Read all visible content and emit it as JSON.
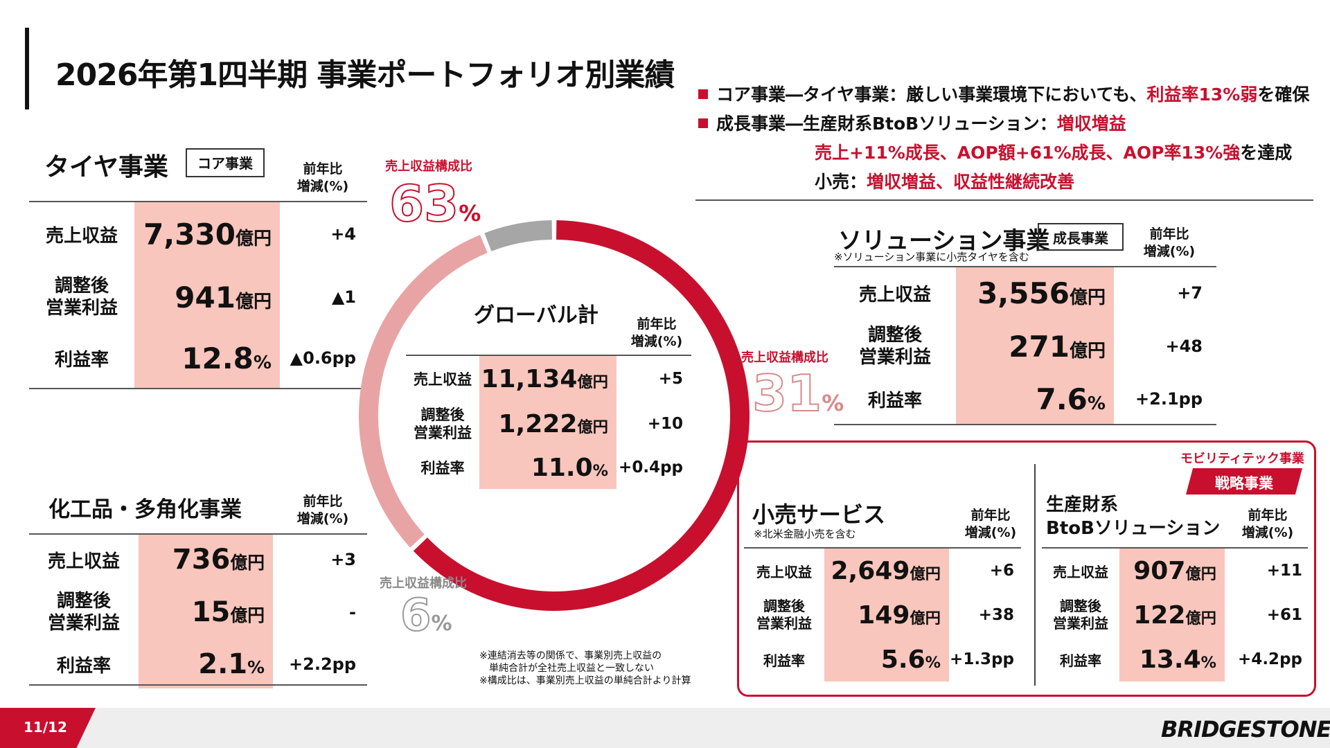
{
  "title": "2026年第1四半期 事業ポートフォリオ別業績",
  "bullets": {
    "b1_a": "コア事業―タイヤ事業：厳しい事業環境下においても、",
    "b1_b": "利益率13%弱",
    "b1_c": "を確保",
    "b2_a": "成長事業―生産財系BtoBソリューション：",
    "b2_b": "増収増益",
    "b3_a": "売上+11%成長、AOP額+61%成長、AOP率13%強",
    "b3_b": "を達成",
    "b4_a": "小売：",
    "b4_b": "増収増益、収益性継続改善"
  },
  "headers": {
    "yoy": "前年比\n増減(%)"
  },
  "labels": {
    "sales": "売上収益",
    "aop": "調整後\n営業利益",
    "margin": "利益率"
  },
  "tire": {
    "title": "タイヤ事業",
    "badge": "コア事業",
    "sales": "7,330",
    "sales_unit": "億円",
    "sales_yoy": "+4",
    "aop": "941",
    "aop_unit": "億円",
    "aop_yoy": "▲1",
    "margin": "12.8",
    "margin_unit": "%",
    "margin_yoy": "▲0.6pp"
  },
  "chem": {
    "title": "化工品・多角化事業",
    "sales": "736",
    "sales_unit": "億円",
    "sales_yoy": "+3",
    "aop": "15",
    "aop_unit": "億円",
    "aop_yoy": "-",
    "margin": "2.1",
    "margin_unit": "%",
    "margin_yoy": "+2.2pp"
  },
  "global": {
    "title": "グローバル計",
    "sales": "11,134",
    "sales_unit": "億円",
    "sales_yoy": "+5",
    "aop": "1,222",
    "aop_unit": "億円",
    "aop_yoy": "+10",
    "margin": "11.0",
    "margin_unit": "%",
    "margin_yoy": "+0.4pp"
  },
  "solution": {
    "title": "ソリューション事業",
    "badge": "成長事業",
    "note": "※ソリューション事業に小売タイヤを含む",
    "sales": "3,556",
    "sales_unit": "億円",
    "sales_yoy": "+7",
    "aop": "271",
    "aop_unit": "億円",
    "aop_yoy": "+48",
    "margin": "7.6",
    "margin_unit": "%",
    "margin_yoy": "+2.1pp"
  },
  "retail": {
    "title": "小売サービス",
    "note": "※北米金融小売を含む",
    "sales": "2,649",
    "sales_unit": "億円",
    "sales_yoy": "+6",
    "aop": "149",
    "aop_unit": "億円",
    "aop_yoy": "+38",
    "margin": "5.6",
    "margin_unit": "%",
    "margin_yoy": "+1.3pp"
  },
  "b2b": {
    "title": "生産財系\nBtoBソリューション",
    "mobility_label": "モビリティテック事業",
    "strategic_badge": "戦略事業",
    "sales": "907",
    "sales_unit": "億円",
    "sales_yoy": "+11",
    "aop": "122",
    "aop_unit": "億円",
    "aop_yoy": "+61",
    "margin": "13.4",
    "margin_unit": "%",
    "margin_yoy": "+4.2pp"
  },
  "chart_data": {
    "type": "pie",
    "categories": [
      "タイヤ事業",
      "ソリューション事業",
      "化工品・多角化事業"
    ],
    "values": [
      63,
      31,
      6
    ],
    "colors": [
      "#c8102e",
      "#e8a4a4",
      "#a6a6a6"
    ],
    "slice_label": "売上収益構成比",
    "value_labels": [
      "63",
      "31",
      "6"
    ],
    "unit": "%"
  },
  "footnote": "※連結消去等の関係で、事業別売上収益の\n　単純合計が全社売上収益と一致しない\n※構成比は、事業別売上収益の単純合計より計算",
  "page": "11/12",
  "logo": "BRIDGESTONE"
}
